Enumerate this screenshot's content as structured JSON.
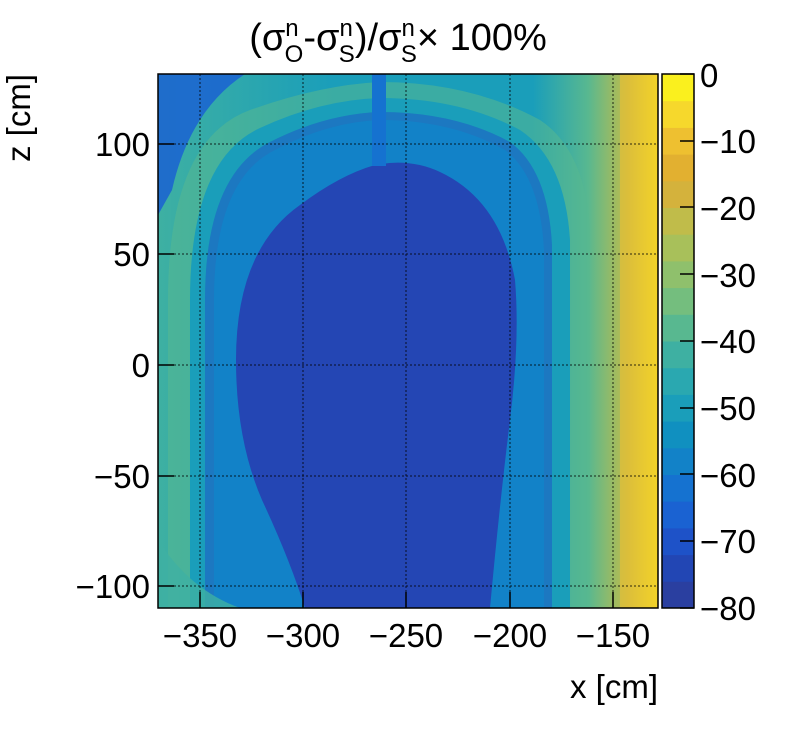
{
  "chart_data": {
    "type": "heatmap",
    "title": {
      "open": "(σ",
      "sup1": "n",
      "sub1": "O",
      "mid1": "-σ",
      "sup2": "n",
      "sub2": "S",
      "mid2": ")/σ",
      "sup3": "n",
      "sub3": "S",
      "tail": "× 100%"
    },
    "xlabel": "x [cm]",
    "ylabel": "z [cm]",
    "xlim": [
      -372,
      -130
    ],
    "ylim": [
      -112,
      130
    ],
    "xticks": [
      {
        "value": -350,
        "label": "−350"
      },
      {
        "value": -300,
        "label": "−300"
      },
      {
        "value": -250,
        "label": "−250"
      },
      {
        "value": -200,
        "label": "−200"
      },
      {
        "value": -150,
        "label": "−150"
      }
    ],
    "yticks": [
      {
        "value": 100,
        "label": "100"
      },
      {
        "value": 50,
        "label": "50"
      },
      {
        "value": 0,
        "label": "0"
      },
      {
        "value": -50,
        "label": "−50"
      },
      {
        "value": -100,
        "label": "−100"
      }
    ],
    "grid": true,
    "colorbar": {
      "range": [
        -80,
        0
      ],
      "ticks": [
        {
          "value": 0,
          "label": "0"
        },
        {
          "value": -10,
          "label": "−10"
        },
        {
          "value": -20,
          "label": "−20"
        },
        {
          "value": -30,
          "label": "−30"
        },
        {
          "value": -40,
          "label": "−40"
        },
        {
          "value": -50,
          "label": "−50"
        },
        {
          "value": -60,
          "label": "−60"
        },
        {
          "value": -70,
          "label": "−70"
        },
        {
          "value": -80,
          "label": "−80"
        }
      ],
      "colors": [
        "#2a3fa0",
        "#2246b4",
        "#1e52c8",
        "#1a62d2",
        "#1572d0",
        "#1282c8",
        "#1090c0",
        "#1a9eba",
        "#2aa8b0",
        "#3eb0a2",
        "#58b890",
        "#74be7e",
        "#8fc06c",
        "#a8c05a",
        "#c0bc4a",
        "#d4b23c",
        "#e2b030",
        "#eec030",
        "#f6d82c",
        "#faf01e"
      ]
    },
    "regions": {
      "central_bulb_value": -76,
      "inner_shell_value": -58,
      "outer_shell_value": -45,
      "edge_band_value": -35,
      "right_edge_value": -5,
      "stripe_value": -66
    }
  }
}
